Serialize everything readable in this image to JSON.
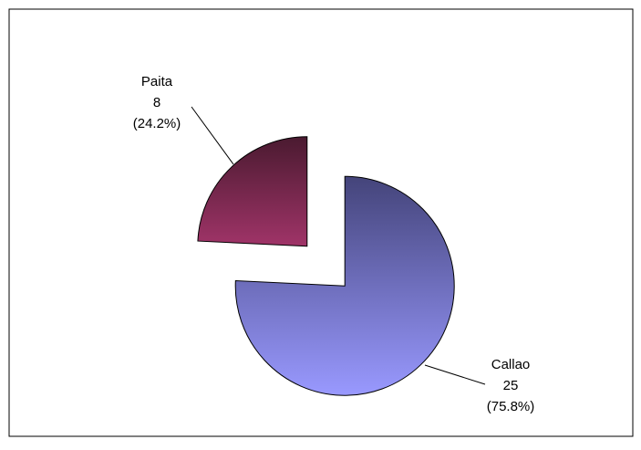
{
  "chart_data": {
    "type": "pie",
    "categories": [
      "Callao",
      "Paita"
    ],
    "values": [
      25,
      8
    ],
    "percent_labels": [
      "(75.8%)",
      "(24.2%)"
    ],
    "colors": [
      [
        "#44447a",
        "#9999ff"
      ],
      [
        "#4a1a30",
        "#a03468"
      ]
    ]
  }
}
